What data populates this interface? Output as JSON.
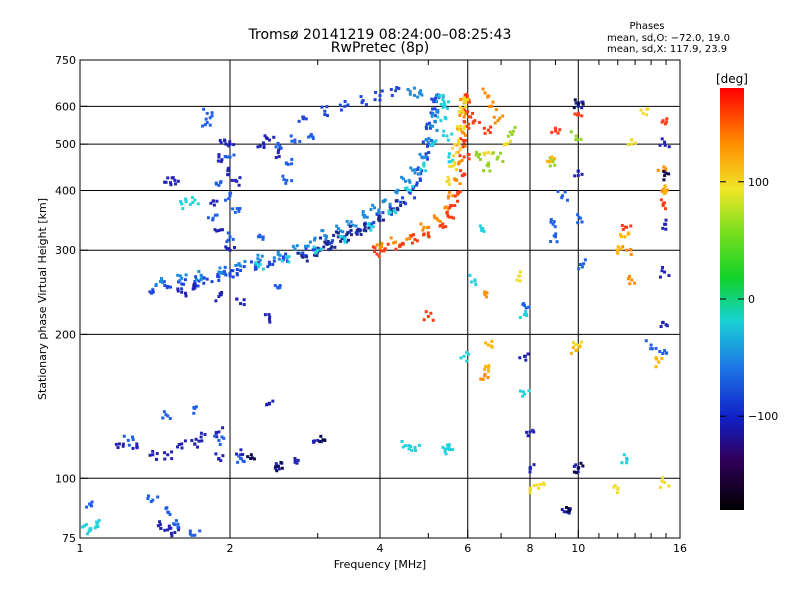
{
  "header": {
    "title": "Tromsø 20141219 08:24:00–08:25:43",
    "subtitle": "RwPretec (8p)",
    "phase_title": "Phases",
    "phase_o": "mean, sd,O: −72.0, 19.0",
    "phase_x": "mean, sd,X: 117.9, 23.9"
  },
  "chart_data": {
    "type": "scatter",
    "xlabel": "Frequency [MHz]",
    "ylabel": "Stationary phase Virtual Height [km]",
    "x_scale": "log",
    "y_scale": "log",
    "xlim": [
      1,
      16
    ],
    "ylim": [
      75,
      750
    ],
    "x_ticks": [
      {
        "v": 1,
        "label": "1"
      },
      {
        "v": 2,
        "label": "2"
      },
      {
        "v": 4,
        "label": "4"
      },
      {
        "v": 6,
        "label": "6"
      },
      {
        "v": 8,
        "label": "8"
      },
      {
        "v": 10,
        "label": "10"
      },
      {
        "v": 16,
        "label": "16"
      }
    ],
    "x_minor": [
      3,
      5,
      7,
      9,
      11,
      12,
      13,
      14,
      15
    ],
    "y_ticks": [
      {
        "v": 75,
        "label": "75"
      },
      {
        "v": 100,
        "label": "100"
      },
      {
        "v": 200,
        "label": "200"
      },
      {
        "v": 300,
        "label": "300"
      },
      {
        "v": 400,
        "label": "400"
      },
      {
        "v": 500,
        "label": "500"
      },
      {
        "v": 600,
        "label": "600"
      },
      {
        "v": 750,
        "label": "750"
      }
    ],
    "grid_x": [
      2,
      4,
      6,
      8,
      10
    ],
    "grid_y": [
      100,
      200,
      300,
      400,
      500,
      600
    ],
    "colorbar": {
      "label": "[deg]",
      "range": [
        -180,
        180
      ],
      "ticks": [
        {
          "v": 100,
          "label": "100"
        },
        {
          "v": 0,
          "label": "0"
        },
        {
          "v": -100,
          "label": "−100"
        }
      ]
    },
    "series": [
      {
        "color": "#1e46dc",
        "points": [
          [
            1.4,
            248
          ],
          [
            1.5,
            252
          ],
          [
            1.6,
            255
          ],
          [
            1.7,
            258
          ],
          [
            1.8,
            261
          ],
          [
            1.9,
            264
          ],
          [
            2.0,
            268
          ],
          [
            2.1,
            272
          ],
          [
            2.25,
            277
          ],
          [
            2.4,
            283
          ],
          [
            2.6,
            289
          ],
          [
            2.8,
            296
          ],
          [
            3.0,
            303
          ],
          [
            3.2,
            311
          ],
          [
            3.4,
            320
          ],
          [
            3.6,
            330
          ],
          [
            3.8,
            340
          ],
          [
            4.0,
            352
          ],
          [
            4.2,
            364
          ],
          [
            4.4,
            378
          ],
          [
            4.6,
            395
          ],
          [
            4.75,
            415
          ],
          [
            4.85,
            440
          ],
          [
            4.95,
            470
          ],
          [
            5.0,
            500
          ],
          [
            5.05,
            540
          ],
          [
            5.1,
            580
          ],
          [
            5.15,
            620
          ],
          [
            4.3,
            647
          ],
          [
            4.0,
            632
          ],
          [
            3.7,
            617
          ],
          [
            3.4,
            600
          ],
          [
            3.1,
            586
          ],
          [
            2.8,
            570
          ]
        ]
      },
      {
        "color": "#1e8cdc",
        "points": [
          [
            1.45,
            258
          ],
          [
            1.6,
            262
          ],
          [
            1.75,
            266
          ],
          [
            1.9,
            270
          ],
          [
            2.1,
            278
          ],
          [
            2.3,
            286
          ],
          [
            2.5,
            294
          ],
          [
            2.7,
            302
          ],
          [
            2.9,
            312
          ],
          [
            3.1,
            322
          ],
          [
            3.3,
            333
          ],
          [
            3.5,
            344
          ],
          [
            3.7,
            356
          ],
          [
            3.9,
            368
          ],
          [
            4.1,
            382
          ],
          [
            4.3,
            398
          ],
          [
            4.5,
            418
          ],
          [
            4.7,
            442
          ],
          [
            4.85,
            470
          ],
          [
            5.0,
            505
          ],
          [
            5.1,
            545
          ],
          [
            5.2,
            585
          ],
          [
            5.25,
            625
          ],
          [
            4.6,
            645
          ],
          [
            4.8,
            640
          ]
        ]
      },
      {
        "color": "#1e2890",
        "points": [
          [
            2.8,
            290
          ],
          [
            3.0,
            297
          ],
          [
            3.2,
            305
          ],
          [
            3.4,
            314
          ],
          [
            3.6,
            324
          ],
          [
            3.8,
            334
          ],
          [
            4.0,
            346
          ],
          [
            4.2,
            358
          ],
          [
            4.4,
            372
          ],
          [
            3.1,
            312
          ],
          [
            3.3,
            320
          ],
          [
            3.5,
            330
          ]
        ]
      },
      {
        "color": "#22d2dc",
        "points": [
          [
            2.3,
            280
          ],
          [
            2.6,
            290
          ],
          [
            3.0,
            300
          ],
          [
            3.4,
            318
          ],
          [
            3.8,
            338
          ],
          [
            4.2,
            360
          ],
          [
            4.6,
            400
          ],
          [
            4.9,
            450
          ],
          [
            5.1,
            500
          ],
          [
            5.3,
            560
          ],
          [
            5.35,
            620
          ],
          [
            5.4,
            600
          ],
          [
            5.45,
            520
          ],
          [
            5.5,
            470
          ],
          [
            1.03,
            80
          ],
          [
            1.05,
            78
          ],
          [
            1.08,
            81
          ],
          [
            4.5,
            117
          ],
          [
            4.7,
            116
          ],
          [
            5.4,
            115
          ],
          [
            5.5,
            116
          ],
          [
            5.9,
            180
          ],
          [
            6.2,
            260
          ],
          [
            6.4,
            330
          ],
          [
            1.6,
            375
          ],
          [
            1.7,
            382
          ],
          [
            7.8,
            220
          ],
          [
            7.8,
            150
          ],
          [
            12.5,
            110
          ]
        ]
      },
      {
        "color": "#ff8c00",
        "points": [
          [
            4.0,
            303
          ],
          [
            4.3,
            312
          ],
          [
            4.6,
            322
          ],
          [
            4.9,
            335
          ],
          [
            5.2,
            350
          ],
          [
            5.4,
            368
          ],
          [
            5.6,
            390
          ],
          [
            5.7,
            420
          ],
          [
            5.75,
            455
          ],
          [
            5.8,
            490
          ],
          [
            5.85,
            530
          ],
          [
            5.9,
            570
          ],
          [
            5.9,
            610
          ],
          [
            6.5,
            640
          ],
          [
            6.7,
            600
          ],
          [
            6.9,
            560
          ],
          [
            6.5,
            165
          ],
          [
            6.5,
            245
          ],
          [
            12.5,
            300
          ],
          [
            12.8,
            260
          ],
          [
            14.8,
            400
          ],
          [
            14.8,
            440
          ]
        ]
      },
      {
        "color": "#ff3c14",
        "points": [
          [
            3.9,
            298
          ],
          [
            4.1,
            302
          ],
          [
            4.4,
            308
          ],
          [
            4.7,
            316
          ],
          [
            5.0,
            326
          ],
          [
            5.3,
            338
          ],
          [
            5.5,
            352
          ],
          [
            5.65,
            372
          ],
          [
            5.75,
            395
          ],
          [
            5.85,
            430
          ],
          [
            5.9,
            470
          ],
          [
            5.9,
            505
          ],
          [
            5.95,
            545
          ],
          [
            6.0,
            585
          ],
          [
            5.95,
            625
          ],
          [
            5.0,
            218
          ],
          [
            6.2,
            560
          ],
          [
            6.6,
            535
          ],
          [
            9.0,
            540
          ],
          [
            10.0,
            580
          ],
          [
            12.5,
            335
          ],
          [
            14.8,
            375
          ],
          [
            14.8,
            560
          ]
        ]
      },
      {
        "color": "#f0dc28",
        "points": [
          [
            5.5,
            420
          ],
          [
            5.6,
            450
          ],
          [
            5.7,
            480
          ],
          [
            5.75,
            510
          ],
          [
            5.8,
            545
          ],
          [
            5.85,
            590
          ],
          [
            5.9,
            625
          ],
          [
            6.6,
            480
          ],
          [
            7.2,
            500
          ],
          [
            8.0,
            95
          ],
          [
            8.4,
            97
          ],
          [
            10.0,
            190
          ],
          [
            12.0,
            95
          ],
          [
            12.8,
            500
          ],
          [
            13.5,
            580
          ],
          [
            14.9,
            98
          ],
          [
            7.6,
            265
          ]
        ]
      },
      {
        "color": "#96d228",
        "points": [
          [
            6.3,
            470
          ],
          [
            6.6,
            450
          ],
          [
            6.9,
            470
          ],
          [
            7.3,
            530
          ],
          [
            8.9,
            460
          ],
          [
            9.9,
            520
          ]
        ]
      },
      {
        "color": "#2222b4",
        "points": [
          [
            1.6,
            245
          ],
          [
            1.7,
            250
          ],
          [
            1.9,
            240
          ],
          [
            2.1,
            232
          ],
          [
            2.4,
            215
          ],
          [
            1.5,
            425
          ],
          [
            1.55,
            420
          ],
          [
            1.9,
            470
          ],
          [
            1.95,
            510
          ],
          [
            2.0,
            500
          ],
          [
            2.05,
            420
          ],
          [
            1.85,
            380
          ],
          [
            1.9,
            330
          ],
          [
            2.0,
            300
          ],
          [
            1.98,
            440
          ],
          [
            2.3,
            495
          ],
          [
            2.4,
            510
          ],
          [
            2.5,
            480
          ],
          [
            1.6,
            118
          ],
          [
            1.7,
            118
          ],
          [
            1.75,
            122
          ],
          [
            1.9,
            125
          ],
          [
            1.9,
            110
          ],
          [
            2.1,
            112
          ],
          [
            1.4,
            112
          ],
          [
            1.5,
            112
          ],
          [
            1.45,
            80
          ],
          [
            1.5,
            78
          ],
          [
            1.55,
            77
          ],
          [
            1.3,
            118
          ],
          [
            1.2,
            118
          ],
          [
            2.5,
            106
          ],
          [
            2.7,
            110
          ],
          [
            3.0,
            120
          ],
          [
            2.4,
            143
          ],
          [
            8.0,
            105
          ],
          [
            8.0,
            125
          ],
          [
            9.5,
            85
          ],
          [
            10.0,
            105
          ],
          [
            10.0,
            430
          ],
          [
            10.0,
            600
          ],
          [
            14.9,
            270
          ],
          [
            14.9,
            340
          ],
          [
            14.9,
            505
          ],
          [
            14.8,
            212
          ],
          [
            7.8,
            180
          ]
        ]
      },
      {
        "color": "#2060e8",
        "points": [
          [
            2.0,
            470
          ],
          [
            1.9,
            410
          ],
          [
            2.0,
            390
          ],
          [
            1.85,
            350
          ],
          [
            2.05,
            360
          ],
          [
            2.0,
            320
          ],
          [
            1.95,
            270
          ],
          [
            1.8,
            580
          ],
          [
            1.8,
            555
          ],
          [
            2.5,
            500
          ],
          [
            2.7,
            510
          ],
          [
            2.9,
            520
          ],
          [
            2.6,
            455
          ],
          [
            2.6,
            420
          ],
          [
            2.3,
            320
          ],
          [
            2.5,
            250
          ],
          [
            1.25,
            120
          ],
          [
            1.5,
            135
          ],
          [
            1.7,
            140
          ],
          [
            1.9,
            120
          ],
          [
            2.1,
            110
          ],
          [
            1.05,
            88
          ],
          [
            1.4,
            90
          ],
          [
            1.5,
            85
          ],
          [
            1.55,
            80
          ],
          [
            1.7,
            76
          ],
          [
            8.9,
            340
          ],
          [
            9.0,
            320
          ],
          [
            9.3,
            390
          ],
          [
            10.1,
            280
          ],
          [
            10.1,
            350
          ],
          [
            14.0,
            190
          ],
          [
            14.9,
            185
          ],
          [
            7.8,
            230
          ]
        ]
      },
      {
        "color": "#0a0a50",
        "points": [
          [
            2.2,
            110
          ],
          [
            2.5,
            106
          ],
          [
            3.1,
            120
          ],
          [
            9.5,
            85
          ],
          [
            10.0,
            105
          ],
          [
            10.0,
            610
          ],
          [
            14.9,
            430
          ]
        ]
      },
      {
        "color": "#ffb400",
        "points": [
          [
            6.6,
            190
          ],
          [
            6.6,
            170
          ],
          [
            8.8,
            460
          ],
          [
            9.9,
            185
          ],
          [
            12.0,
            300
          ],
          [
            12.4,
            320
          ],
          [
            14.5,
            175
          ],
          [
            14.9,
            400
          ]
        ]
      }
    ]
  }
}
